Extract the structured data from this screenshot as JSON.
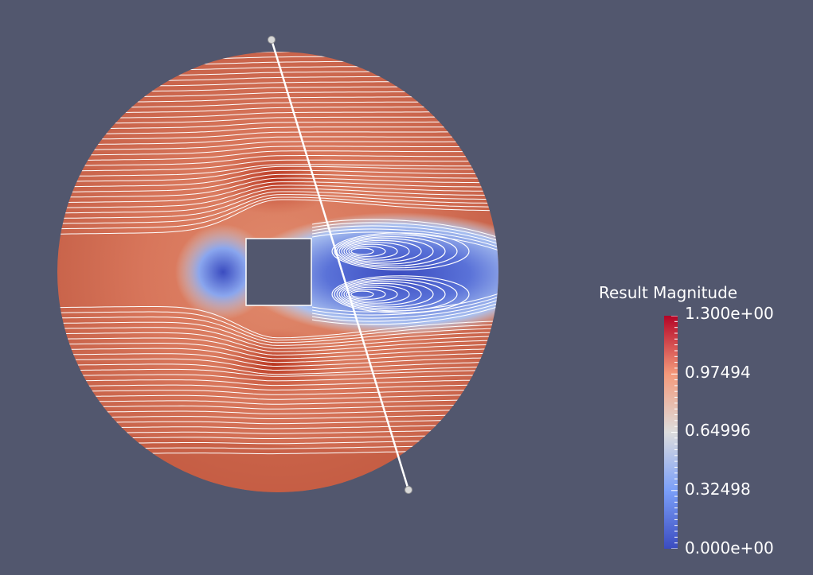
{
  "view": {
    "background_color": "#52576e",
    "obstacle_color": "#52576e",
    "streamline_color": "#ffffff",
    "probe_line_color": "#ffffff",
    "probe_handle_color": "#d8d8d8"
  },
  "legend": {
    "title": "Result Magnitude",
    "range": [
      0.0,
      1.3
    ],
    "labels": [
      "1.300e+00",
      "0.97494",
      "0.64996",
      "0.32498",
      "0.000e+00"
    ],
    "colormap": [
      "#3b4cc0",
      "#7b9ff9",
      "#dddddd",
      "#f49a7b",
      "#b40426"
    ]
  }
}
